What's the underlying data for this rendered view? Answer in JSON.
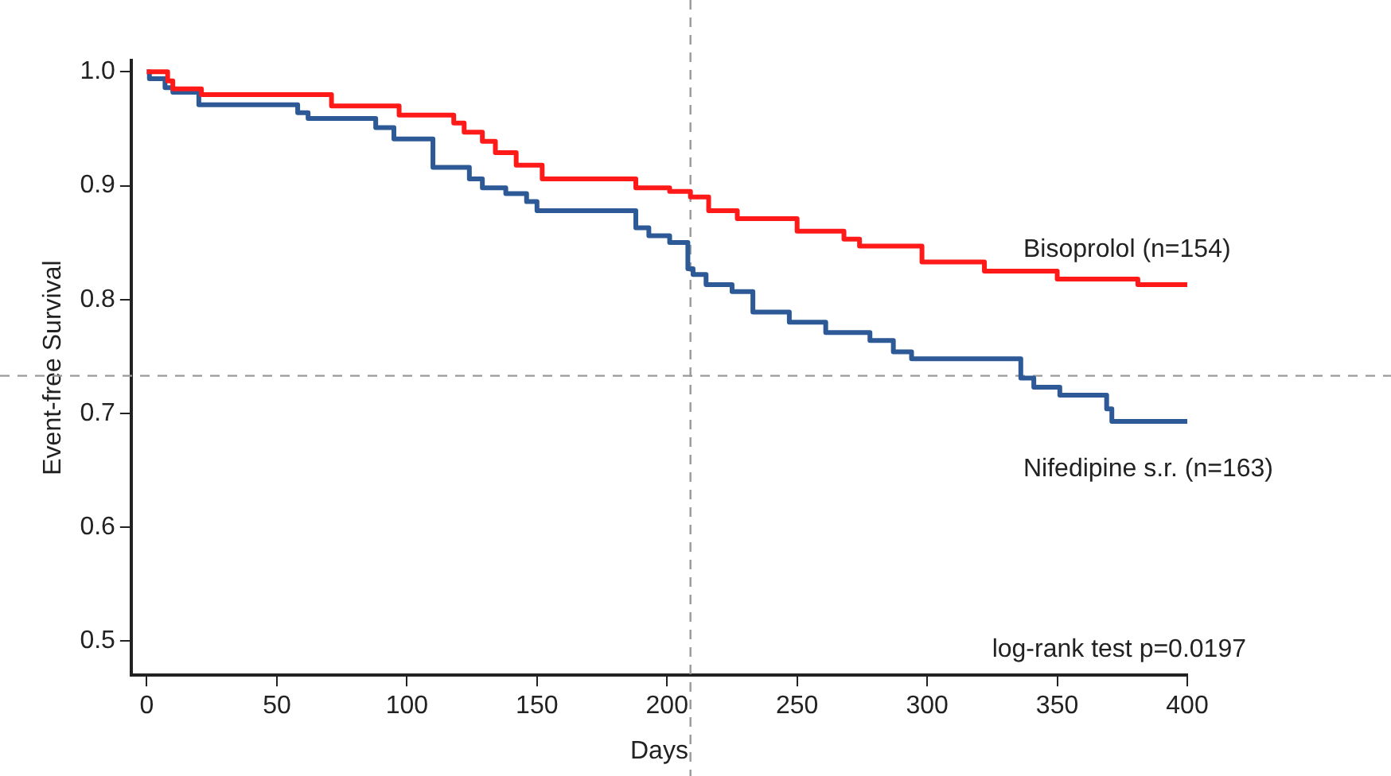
{
  "chart_data": {
    "type": "step",
    "xlabel": "Days",
    "ylabel": "Event-free Survival",
    "xlim": [
      -6,
      400
    ],
    "xticks": [
      0,
      50,
      100,
      150,
      200,
      250,
      300,
      350,
      400
    ],
    "ylim": [
      0.47,
      1.01
    ],
    "yticks": [
      {
        "value": 0.5,
        "label": "0.5"
      },
      {
        "value": 0.6,
        "label": "0.6"
      },
      {
        "value": 0.7,
        "label": "0.7"
      },
      {
        "value": 0.8,
        "label": "0.8"
      },
      {
        "value": 0.9,
        "label": "0.9"
      },
      {
        "value": 1.0,
        "label": "1.0"
      }
    ],
    "grid": false,
    "legend": false,
    "marker": "none",
    "line_style": "solid",
    "series": [
      {
        "name": "Bisoprolol (n=154)",
        "color": "#ff1a1a",
        "x": [
          0,
          8,
          10,
          21,
          71,
          97,
          118,
          122,
          129,
          134,
          142,
          152,
          188,
          201,
          209,
          216,
          227,
          250,
          268,
          274,
          298,
          322,
          350,
          381,
          400
        ],
        "values": [
          1.0,
          0.992,
          0.985,
          0.98,
          0.97,
          0.962,
          0.955,
          0.947,
          0.939,
          0.929,
          0.918,
          0.906,
          0.898,
          0.895,
          0.89,
          0.878,
          0.871,
          0.86,
          0.853,
          0.847,
          0.833,
          0.825,
          0.818,
          0.813,
          0.813
        ]
      },
      {
        "name": "Nifedipine s.r. (n=163)",
        "color": "#2d5a96",
        "x": [
          0,
          1,
          7,
          10,
          20,
          58,
          62,
          88,
          95,
          110,
          124,
          129,
          138,
          146,
          150,
          188,
          193,
          201,
          208,
          210,
          215,
          225,
          233,
          247,
          261,
          278,
          287,
          294,
          336,
          341,
          351,
          369,
          371,
          400
        ],
        "values": [
          1.0,
          0.994,
          0.986,
          0.982,
          0.971,
          0.964,
          0.959,
          0.951,
          0.941,
          0.916,
          0.906,
          0.898,
          0.893,
          0.886,
          0.878,
          0.863,
          0.856,
          0.85,
          0.827,
          0.822,
          0.813,
          0.807,
          0.789,
          0.78,
          0.771,
          0.764,
          0.754,
          0.748,
          0.731,
          0.723,
          0.716,
          0.704,
          0.693,
          0.693
        ]
      }
    ],
    "ref_lines": [
      {
        "axis": "x",
        "value": 209,
        "label": null,
        "color": "#999999",
        "line_style": "dashed"
      },
      {
        "axis": "y",
        "value": 0.733,
        "label": null,
        "color": "#999999",
        "line_style": "dashed"
      }
    ],
    "annotations": [
      "log-rank test p=0.0197"
    ]
  }
}
